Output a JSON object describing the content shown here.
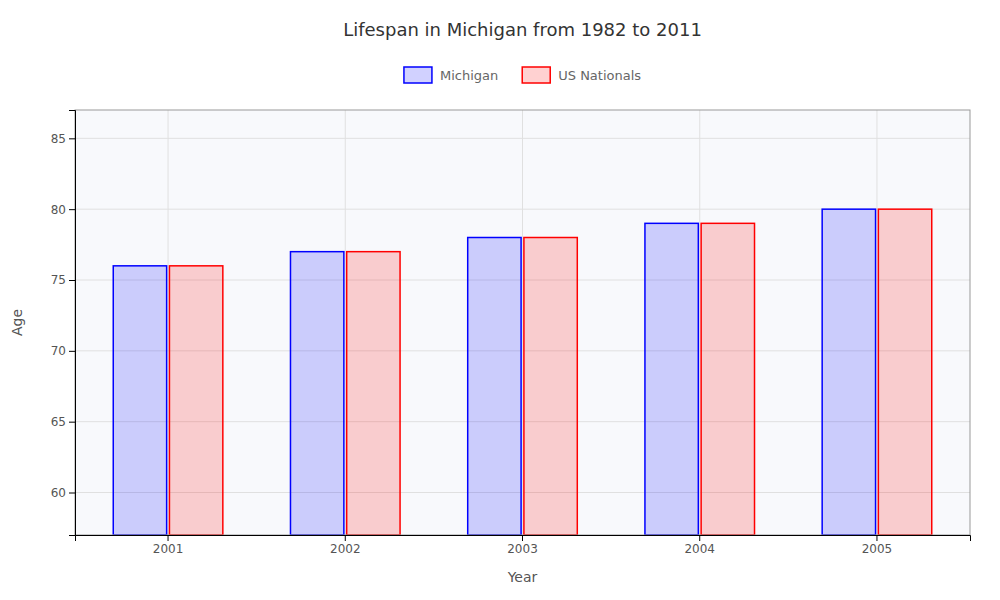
{
  "chart_data": {
    "type": "bar",
    "title": "Lifespan in Michigan from 1982 to 2011",
    "xlabel": "Year",
    "ylabel": "Age",
    "categories": [
      "2001",
      "2002",
      "2003",
      "2004",
      "2005"
    ],
    "series": [
      {
        "name": "Michigan",
        "color": "#0000ff",
        "values": [
          76,
          77,
          78,
          79,
          80
        ]
      },
      {
        "name": "US Nationals",
        "color": "#ff0000",
        "values": [
          76,
          77,
          78,
          79,
          80
        ]
      }
    ],
    "ylim": [
      57,
      87
    ],
    "yticks": [
      60,
      65,
      70,
      75,
      80,
      85
    ],
    "grid": true,
    "legend": "top"
  }
}
